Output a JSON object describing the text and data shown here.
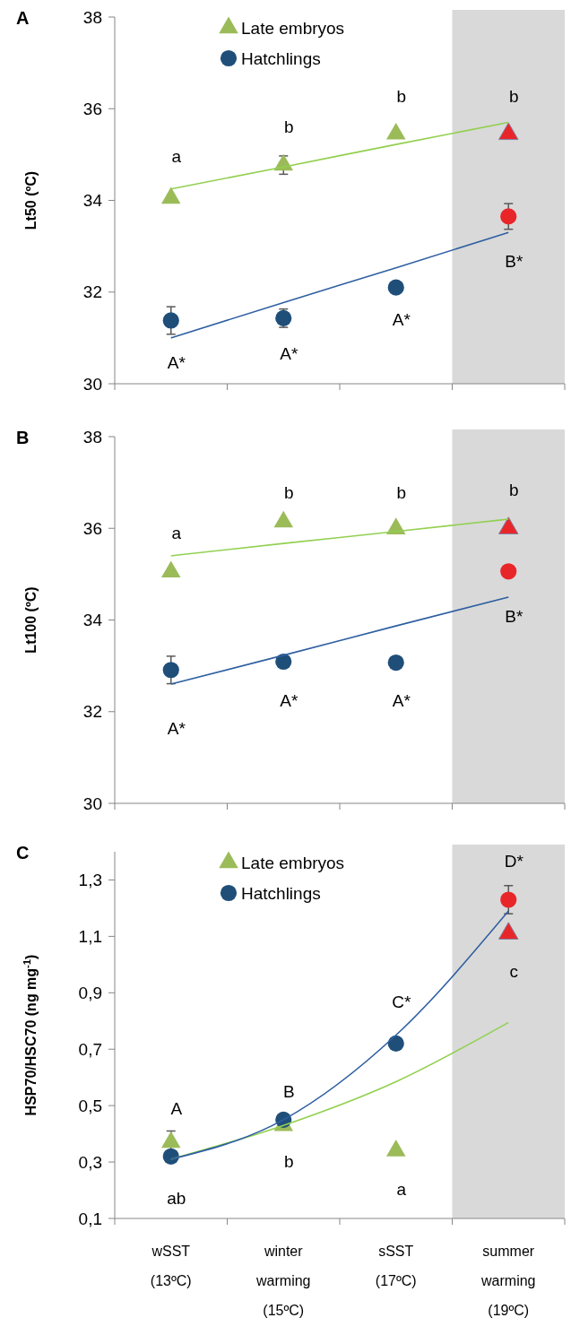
{
  "chart_data": [
    {
      "type": "scatter",
      "title": "A",
      "ylabel": "Lt50 (ºC)",
      "categories": [
        "wSST\n(13ºC)",
        "winter\nwarming\n(15ºC)",
        "sSST\n(17ºC)",
        "summer\nwarming\n(19ºC)"
      ],
      "tick_labels": "y",
      "ylim": [
        30,
        38
      ],
      "yticks": [
        30,
        32,
        34,
        36,
        38
      ],
      "legend": "top",
      "bands": [
        {
          "axis": "x",
          "from": "summer\nwarming\n(19ºC)",
          "to": "summer\nwarming\n(19ºC)",
          "color": "#d9d9d9"
        }
      ],
      "series": [
        {
          "name": "Late embryos",
          "marker": "triangle",
          "color": "#9bbb59",
          "colors": [
            "#9bbb59",
            "#9bbb59",
            "#9bbb59",
            "#e8262a"
          ],
          "values": [
            34.05,
            34.77,
            35.45,
            35.45
          ],
          "errors": [
            null,
            0.2,
            null,
            null
          ]
        },
        {
          "name": "Hatchlings",
          "marker": "circle",
          "color": "#1f4e79",
          "colors": [
            "#1f4e79",
            "#1f4e79",
            "#1f4e79",
            "#e8262a"
          ],
          "values": [
            31.38,
            31.43,
            32.1,
            33.65
          ],
          "errors": [
            0.3,
            0.2,
            null,
            0.28
          ]
        },
        {
          "type": "line",
          "marker": "none",
          "color": "#92d050",
          "values": [
            34.25,
            34.73,
            35.22,
            35.7
          ]
        },
        {
          "type": "line",
          "marker": "none",
          "color": "#2e5fa1",
          "values": [
            31.0,
            31.77,
            32.53,
            33.3
          ]
        }
      ],
      "annotations": [
        "a",
        "b",
        "b",
        "b",
        "A*",
        "A*",
        "A*",
        "B*"
      ]
    },
    {
      "type": "scatter",
      "title": "B",
      "ylabel": "Lt100 (ºC)",
      "categories": [
        "wSST\n(13ºC)",
        "winter\nwarming\n(15ºC)",
        "sSST\n(17ºC)",
        "summer\nwarming\n(19ºC)"
      ],
      "tick_labels": "y",
      "ylim": [
        30,
        38
      ],
      "yticks": [
        30,
        32,
        34,
        36,
        38
      ],
      "bands": [
        {
          "axis": "x",
          "from": "summer\nwarming\n(19ºC)",
          "to": "summer\nwarming\n(19ºC)",
          "color": "#d9d9d9"
        }
      ],
      "series": [
        {
          "marker": "triangle",
          "color": "#9bbb59",
          "colors": [
            null,
            null,
            null,
            "#e8262a"
          ],
          "values": [
            35.05,
            36.14,
            35.99,
            36.0
          ]
        },
        {
          "marker": "circle",
          "color": "#1f4e79",
          "colors": [
            null,
            null,
            null,
            "#e8262a"
          ],
          "values": [
            32.91,
            33.09,
            33.07,
            35.06
          ],
          "errors": [
            0.3,
            null,
            null,
            null
          ]
        },
        {
          "type": "line",
          "marker": "none",
          "color": "#92d050",
          "values": [
            35.4,
            35.67,
            35.93,
            36.2
          ]
        },
        {
          "type": "line",
          "marker": "none",
          "color": "#2e5fa1",
          "values": [
            32.6,
            33.23,
            33.87,
            34.5
          ]
        }
      ],
      "annotations": [
        "a",
        "b",
        "b",
        "b",
        "A*",
        "A*",
        "A*",
        "B*"
      ]
    },
    {
      "type": "scatter",
      "title": "C",
      "ylabel": "HSP70/HSC70 (ng mg$^{-1}$)",
      "categories": [
        "wSST\n(13ºC)",
        "winter\nwarming\n(15ºC)",
        "sSST\n(17ºC)",
        "summer\nwarming\n(19ºC)"
      ],
      "ylim": [
        0.1,
        1.4
      ],
      "yticks": [
        {
          "value": 0.1,
          "label": "0,1"
        },
        {
          "value": 0.3,
          "label": "0,3"
        },
        {
          "value": 0.5,
          "label": "0,5"
        },
        {
          "value": 0.7,
          "label": "0,7"
        },
        {
          "value": 0.9,
          "label": "0,9"
        },
        {
          "value": 1.1,
          "label": "1,1"
        },
        {
          "value": 1.3,
          "label": "1,3"
        }
      ],
      "legend": "top",
      "bands": [
        {
          "axis": "x",
          "from": "summer\nwarming\n(19ºC)",
          "to": "summer\nwarming\n(19ºC)",
          "color": "#d9d9d9"
        }
      ],
      "series": [
        {
          "name": "Late embryos",
          "marker": "triangle",
          "color": "#9bbb59",
          "colors": [
            "#9bbb59",
            "#9bbb59",
            "#9bbb59",
            "#e8262a"
          ],
          "values": [
            0.37,
            0.43,
            0.34,
            1.11
          ],
          "errors": [
            0.04,
            null,
            null,
            null
          ]
        },
        {
          "name": "Hatchlings",
          "marker": "circle",
          "color": "#1f4e79",
          "colors": [
            "#1f4e79",
            "#1f4e79",
            "#1f4e79",
            "#e8262a"
          ],
          "values": [
            0.32,
            0.45,
            0.72,
            1.23
          ],
          "errors": [
            null,
            null,
            null,
            0.05
          ]
        },
        {
          "type": "line",
          "marker": "none",
          "color": "#92d050",
          "values": [
            0.31,
            0.43,
            0.585,
            0.795
          ]
        },
        {
          "type": "line",
          "marker": "none",
          "color": "#2e5fa1",
          "values": [
            0.31,
            0.45,
            0.75,
            1.19
          ]
        }
      ],
      "annotations": [
        "A",
        "ab",
        "B",
        "b",
        "C*",
        "a",
        "D*",
        "c"
      ]
    }
  ]
}
